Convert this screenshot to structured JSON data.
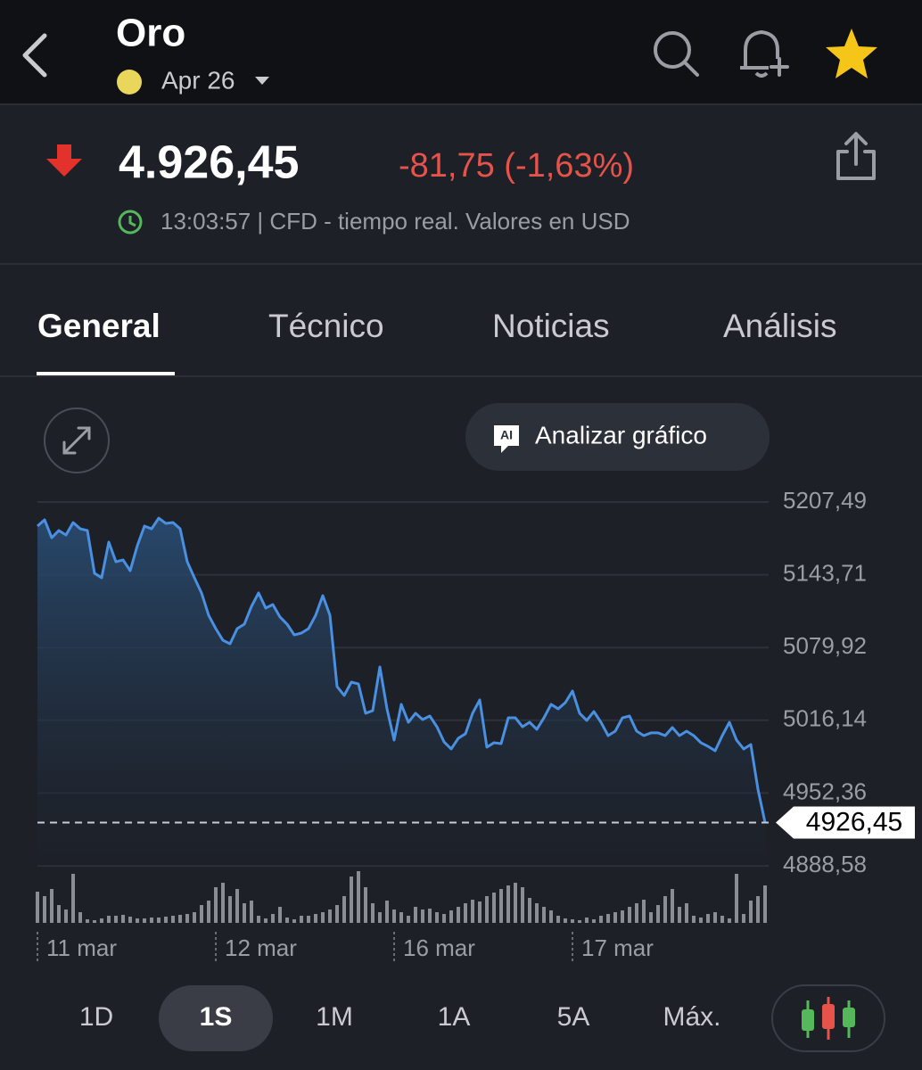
{
  "header": {
    "title": "Oro",
    "contract": "Apr 26"
  },
  "quote": {
    "price": "4.926,45",
    "change": "-81,75 (-1,63%)",
    "info": "13:03:57 | CFD - tiempo real. Valores en USD"
  },
  "tabs": [
    "General",
    "Técnico",
    "Noticias",
    "Análisis"
  ],
  "analyze_button": "Analizar gráfico",
  "chart_data": {
    "type": "line",
    "series": [
      {
        "color": "#4a90e2",
        "values": [
          5186.4,
          5191.9,
          5176.2,
          5182.5,
          5178.6,
          5189.5,
          5184.0,
          5182.5,
          5145.0,
          5141.1,
          5172.3,
          5155.1,
          5156.7,
          5147.3,
          5169.2,
          5186.4,
          5184.0,
          5193.4,
          5188.7,
          5189.5,
          5184.0,
          5155.1,
          5141.1,
          5127.8,
          5108.2,
          5096.5,
          5086.3,
          5083.2,
          5096.5,
          5100.4,
          5116.0,
          5127.8,
          5114.5,
          5117.6,
          5106.7,
          5100.4,
          5091.0,
          5092.6,
          5096.5,
          5108.2,
          5125.4,
          5108.2,
          5045.7,
          5037.9,
          5049.6,
          5048.0,
          5022.3,
          5024.6,
          5062.9,
          5026.2,
          4998.8,
          5030.1,
          5014.4,
          5022.3,
          5016.8,
          5019.9,
          5010.5,
          4997.2,
          4991.0,
          5000.4,
          5004.3,
          5022.3,
          5034.0,
          4992.6,
          4996.5,
          4995.7,
          5018.3,
          5018.3,
          5010.5,
          5014.4,
          5008.2,
          5018.3,
          5030.1,
          5026.2,
          5031.6,
          5041.8,
          5022.3,
          5016.0,
          5023.8,
          5014.4,
          5002.7,
          5006.6,
          5018.3,
          5019.9,
          5006.6,
          5002.7,
          5005.1,
          5005.1,
          5002.7,
          5009.8,
          5002.7,
          5006.6,
          5002.7,
          4996.5,
          4993.3,
          4989.4,
          5002.7,
          5014.4,
          4998.8,
          4991.0,
          4994.9,
          4955.8,
          4926.45
        ]
      }
    ],
    "xlim": [
      0,
      102
    ],
    "xticks": [
      {
        "value": 0,
        "label": "11 mar"
      },
      {
        "value": 25,
        "label": "12 mar"
      },
      {
        "value": 50,
        "label": "16 mar"
      },
      {
        "value": 75,
        "label": "17 mar"
      }
    ],
    "ylim": [
      4888.58,
      5207.49
    ],
    "yticks": [
      {
        "value": 5207.49,
        "label": "5207,49"
      },
      {
        "value": 5143.71,
        "label": "5143,71"
      },
      {
        "value": 5079.92,
        "label": "5079,92"
      },
      {
        "value": 5016.14,
        "label": "5016,14"
      },
      {
        "value": 4952.36,
        "label": "4952,36"
      },
      {
        "value": 4888.58,
        "label": "4888,58"
      }
    ],
    "grid": true,
    "last_price": {
      "value": 4926.45,
      "label": "4926,45"
    },
    "volume": [
      35,
      30,
      38,
      20,
      15,
      55,
      12,
      4,
      3,
      5,
      8,
      8,
      9,
      7,
      5,
      5,
      6,
      6,
      7,
      8,
      9,
      10,
      12,
      20,
      25,
      40,
      45,
      30,
      38,
      22,
      25,
      8,
      5,
      10,
      18,
      6,
      4,
      8,
      8,
      10,
      12,
      15,
      20,
      30,
      52,
      58,
      40,
      22,
      12,
      25,
      15,
      12,
      8,
      18,
      15,
      16,
      12,
      10,
      14,
      18,
      22,
      26,
      24,
      30,
      34,
      38,
      42,
      45,
      40,
      28,
      22,
      18,
      14,
      8,
      5,
      4,
      3,
      6,
      4,
      8,
      10,
      12,
      14,
      18,
      22,
      26,
      12,
      20,
      30,
      38,
      18,
      22,
      8,
      6,
      10,
      12,
      8,
      5,
      55,
      10,
      25,
      30,
      42
    ],
    "volume_ylim": [
      0,
      60
    ]
  },
  "ranges": [
    "1D",
    "1S",
    "1M",
    "1A",
    "5A",
    "Máx."
  ]
}
